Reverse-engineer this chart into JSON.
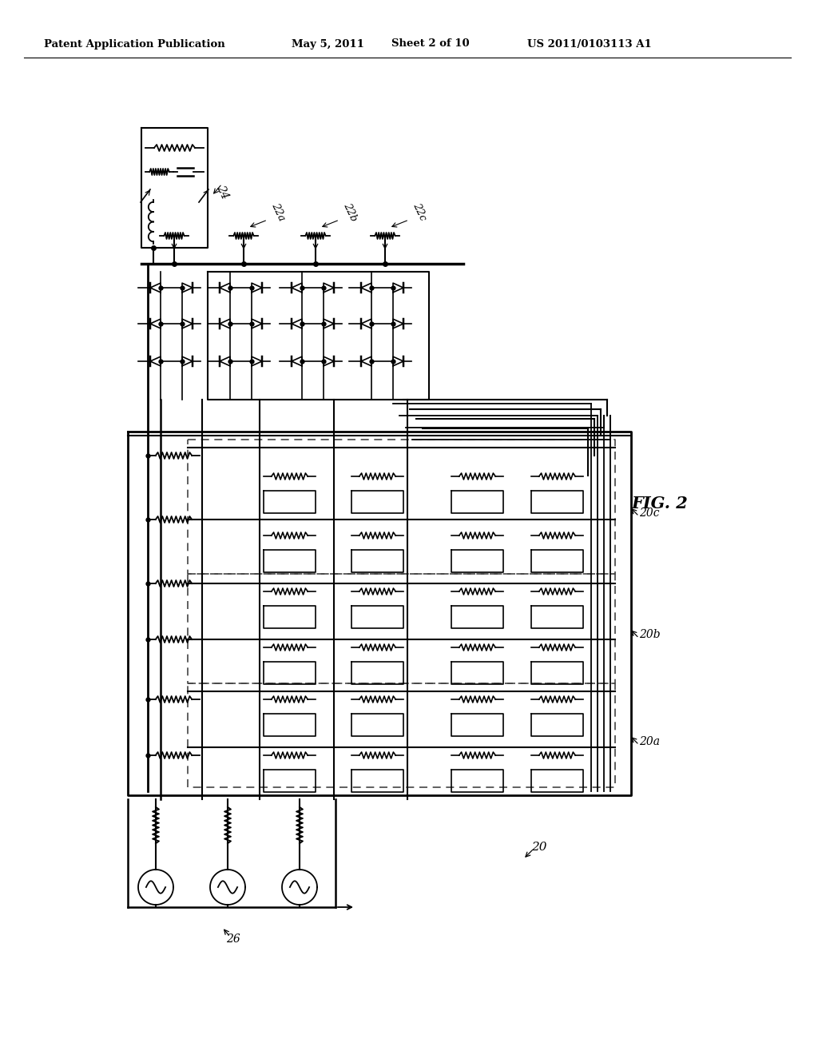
{
  "title_left": "Patent Application Publication",
  "title_mid": "May 5, 2011",
  "title_right_sheet": "Sheet 2 of 10",
  "title_right_num": "US 2011/0103113 A1",
  "fig_label": "FIG. 2",
  "bg_color": "#ffffff",
  "line_color": "#000000",
  "label_24": "24",
  "label_22a": "22a",
  "label_22b": "22b",
  "label_22c": "22c",
  "label_20": "20",
  "label_20a": "20a",
  "label_20b": "20b",
  "label_20c": "20c",
  "label_26": "26"
}
